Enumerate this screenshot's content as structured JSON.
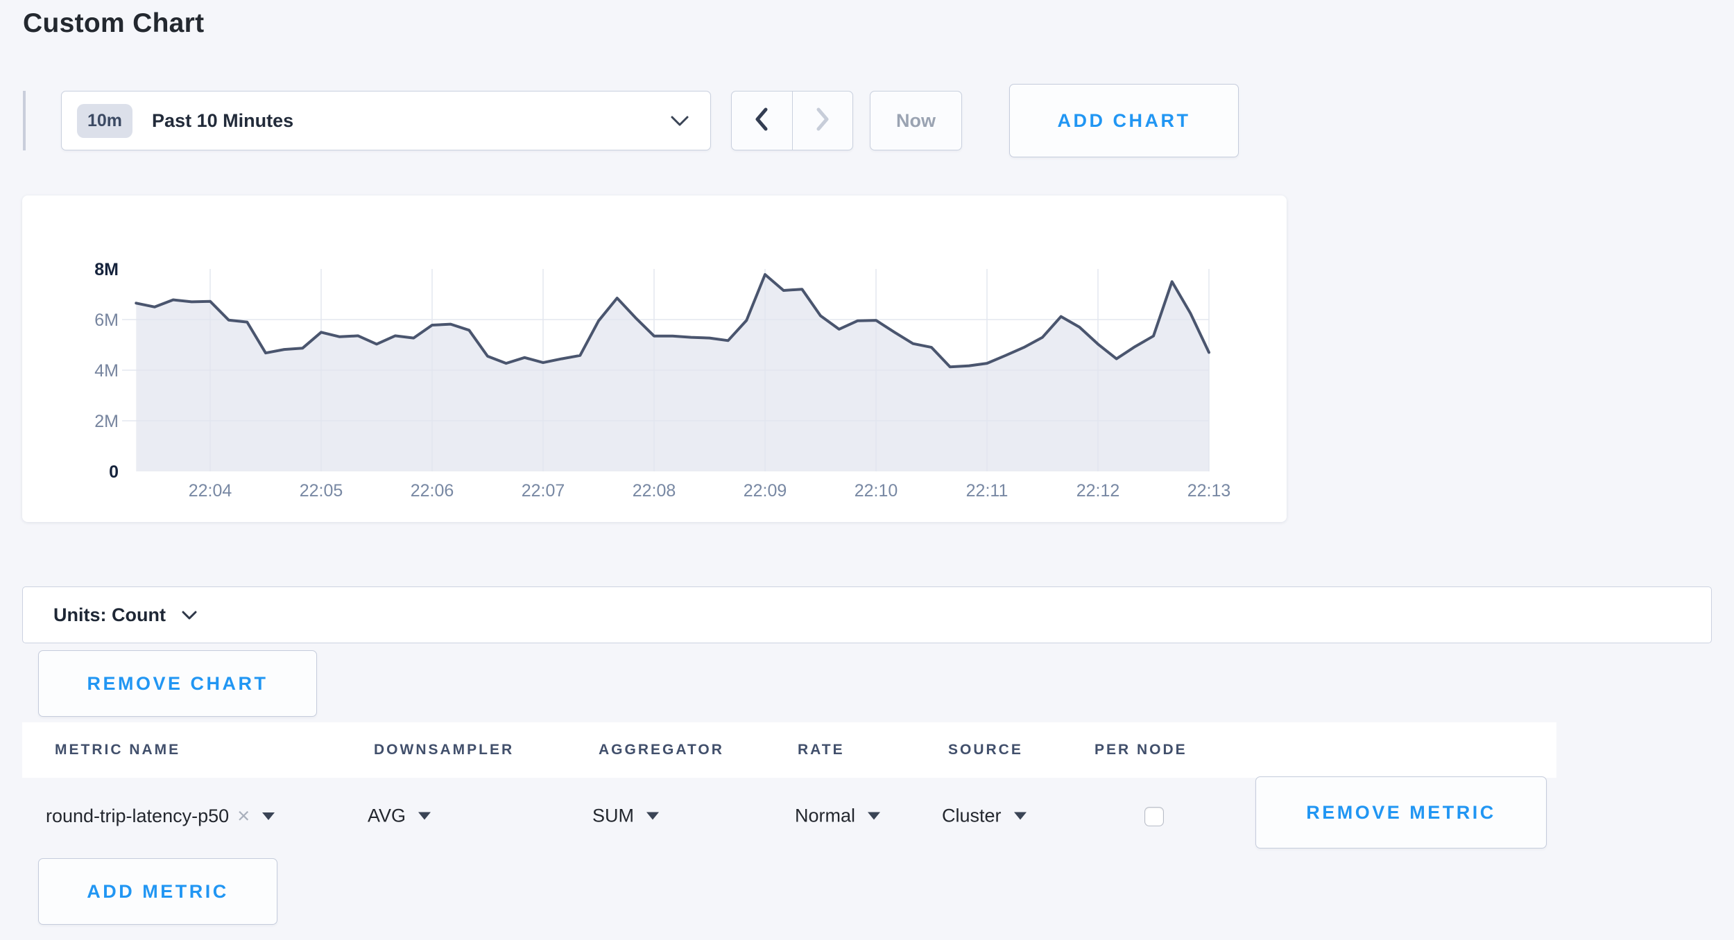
{
  "page": {
    "title": "Custom Chart",
    "background": "#f5f6fa",
    "accent_blue": "#2196f3"
  },
  "toolbar": {
    "time_range": {
      "badge": "10m",
      "label": "Past 10 Minutes"
    },
    "now_button": "Now",
    "add_chart_button": "ADD CHART"
  },
  "units_bar": {
    "label": "Units: Count"
  },
  "remove_chart_button": "REMOVE CHART",
  "metrics_table": {
    "headers": [
      "METRIC NAME",
      "DOWNSAMPLER",
      "AGGREGATOR",
      "RATE",
      "SOURCE",
      "PER NODE"
    ],
    "row": {
      "metric_name": "round-trip-latency-p50",
      "downsampler": "AVG",
      "aggregator": "SUM",
      "rate": "Normal",
      "source": "Cluster",
      "per_node_checked": false,
      "remove_metric_button": "REMOVE METRIC"
    },
    "add_metric_button": "ADD METRIC"
  },
  "chart_data": {
    "type": "area",
    "title": "",
    "unit": "Count",
    "grid": true,
    "legend": false,
    "ylim": [
      0,
      8000000
    ],
    "x_ticks": [
      "22:04",
      "22:05",
      "22:06",
      "22:07",
      "22:08",
      "22:09",
      "22:10",
      "22:11",
      "22:12",
      "22:13"
    ],
    "y_ticks": [
      {
        "label": "0",
        "value": 0,
        "emphasis": true
      },
      {
        "label": "2M",
        "value": 2000000
      },
      {
        "label": "4M",
        "value": 4000000
      },
      {
        "label": "6M",
        "value": 6000000
      },
      {
        "label": "8M",
        "value": 8000000,
        "emphasis": true
      }
    ],
    "series": [
      {
        "name": "round-trip-latency-p50",
        "start_time": "22:03:20",
        "end_time": "22:13:00",
        "interval_seconds": 10,
        "values": [
          6650000,
          6500000,
          6780000,
          6700000,
          6720000,
          5980000,
          5900000,
          4680000,
          4820000,
          4870000,
          5500000,
          5320000,
          5360000,
          5030000,
          5360000,
          5270000,
          5780000,
          5820000,
          5580000,
          4550000,
          4270000,
          4500000,
          4300000,
          4450000,
          4580000,
          5950000,
          6850000,
          6070000,
          5350000,
          5350000,
          5300000,
          5270000,
          5170000,
          5970000,
          7780000,
          7150000,
          7200000,
          6150000,
          5620000,
          5950000,
          5970000,
          5500000,
          5050000,
          4900000,
          4130000,
          4170000,
          4270000,
          4580000,
          4900000,
          5300000,
          6120000,
          5700000,
          5030000,
          4450000,
          4930000,
          5350000,
          7500000,
          6250000,
          4700000
        ]
      }
    ]
  }
}
